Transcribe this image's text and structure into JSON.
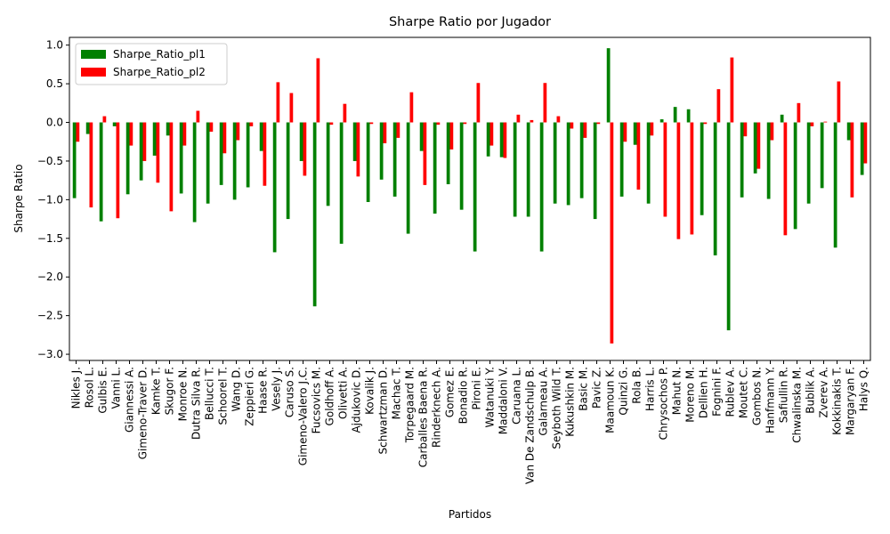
{
  "chart_data": {
    "type": "bar",
    "title": "Sharpe Ratio por Jugador",
    "x_label": "Partidos",
    "y_label": "Sharpe Ratio",
    "categories": [
      "Nikles J.",
      "Rosol L.",
      "Gulbis E.",
      "Vanni L.",
      "Giannessi A.",
      "Gimeno-Traver D.",
      "Kamke T.",
      "Skugor F.",
      "Monroe N.",
      "Dutra Silva R.",
      "Bellucci T.",
      "Schoorel T.",
      "Wang D.",
      "Zeppieri G.",
      "Haase R.",
      "Vesely J.",
      "Caruso S.",
      "Gimeno-Valero J.C.",
      "Fucsovics M.",
      "Goldhoff A.",
      "Olivetti A.",
      "Ajdukovic D.",
      "Kovalik J.",
      "Schwartzman D.",
      "Machac T.",
      "Torpegaard M.",
      "Carballes Baena R.",
      "Rinderknech A.",
      "Gomez E.",
      "Bonadio R.",
      "Pironi E.",
      "Watanuki Y.",
      "Maddaloni V.",
      "Caruana L.",
      "Van De Zandschulp B.",
      "Galarneau A.",
      "Seyboth Wild T.",
      "Kukushkin M.",
      "Basic M.",
      "Pavic Z.",
      "Maamoun K.",
      "Quinzi G.",
      "Rola B.",
      "Harris L.",
      "Chrysochos P.",
      "Mahut N.",
      "Moreno M.",
      "Dellien H.",
      "Fognini F.",
      "Rublev A.",
      "Moutet C.",
      "Gombos N.",
      "Hanfmann Y.",
      "Safiullin R.",
      "Chwalinska M.",
      "Bublik A.",
      "Zverev A.",
      "Kokkinakis T.",
      "Margaryan F.",
      "Halys Q."
    ],
    "series": [
      {
        "name": "Sharpe_Ratio_pl1",
        "color": "#008000",
        "values": [
          -0.98,
          -0.15,
          -1.28,
          -0.05,
          -0.93,
          -0.75,
          -0.43,
          -0.17,
          -0.92,
          -1.29,
          -1.05,
          -0.81,
          -1.0,
          -0.84,
          -0.37,
          -1.68,
          -1.25,
          -0.5,
          -2.38,
          -1.08,
          -1.57,
          -0.5,
          -1.03,
          -0.74,
          -0.96,
          -1.44,
          -0.37,
          -1.18,
          -0.8,
          -1.13,
          -1.67,
          -0.44,
          -0.45,
          -1.22,
          -1.22,
          -1.67,
          -1.05,
          -1.07,
          -0.98,
          -1.25,
          0.96,
          -0.96,
          -0.29,
          -1.05,
          0.04,
          0.2,
          0.17,
          -1.2,
          -1.72,
          -2.69,
          -0.97,
          -0.66,
          -0.99,
          0.1,
          -1.38,
          -1.05,
          -0.85,
          -1.62,
          -0.23,
          -0.68
        ]
      },
      {
        "name": "Sharpe_Ratio_pl2",
        "color": "#ff0000",
        "values": [
          -0.25,
          -1.1,
          0.08,
          -1.24,
          -0.3,
          -0.5,
          -0.78,
          -1.15,
          -0.3,
          0.15,
          -0.12,
          -0.4,
          -0.23,
          -0.05,
          -0.82,
          0.52,
          0.38,
          -0.69,
          0.83,
          -0.03,
          0.24,
          -0.7,
          -0.02,
          -0.27,
          -0.2,
          0.39,
          -0.81,
          -0.03,
          -0.35,
          -0.02,
          0.51,
          -0.3,
          -0.46,
          0.1,
          0.03,
          0.51,
          0.08,
          -0.08,
          -0.2,
          -0.02,
          -2.86,
          -0.25,
          -0.87,
          -0.17,
          -1.22,
          -1.51,
          -1.45,
          -0.02,
          0.43,
          0.84,
          -0.18,
          -0.6,
          -0.23,
          -1.46,
          0.25,
          -0.05,
          0.01,
          0.53,
          -0.97,
          -0.53
        ]
      }
    ],
    "ylim": [
      -3.08,
      1.1
    ],
    "yticks": [
      {
        "value": -3.0,
        "label": "−3.0"
      },
      {
        "value": -2.5,
        "label": "−2.5"
      },
      {
        "value": -2.0,
        "label": "−2.0"
      },
      {
        "value": -1.5,
        "label": "−1.5"
      },
      {
        "value": -1.0,
        "label": "−1.0"
      },
      {
        "value": -0.5,
        "label": "−0.5"
      },
      {
        "value": 0,
        "label": "0.0"
      },
      {
        "value": 0.5,
        "label": "0.5"
      },
      {
        "value": 1.0,
        "label": "1.0"
      }
    ],
    "legend": "upper left"
  }
}
